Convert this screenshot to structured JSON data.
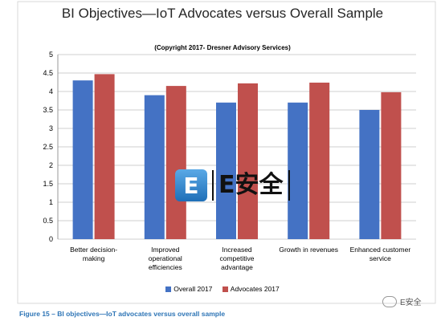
{
  "chart_data": {
    "type": "bar",
    "title": "BI Objectives—IoT Advocates versus Overall Sample",
    "subtitle": "(Copyright 2017- Dresner Advisory Services)",
    "categories": [
      [
        "Better decision-",
        "making"
      ],
      [
        "Improved",
        "operational",
        "efficiencies"
      ],
      [
        "Increased",
        "competitive",
        "advantage"
      ],
      [
        "Growth in revenues"
      ],
      [
        "Enhanced customer",
        "service"
      ]
    ],
    "series": [
      {
        "name": "Overall 2017",
        "color": "#4472c4",
        "values": [
          4.3,
          3.9,
          3.7,
          3.7,
          3.5
        ]
      },
      {
        "name": "Advocates 2017",
        "color": "#c0504d",
        "values": [
          4.47,
          4.15,
          4.22,
          4.24,
          3.98
        ]
      }
    ],
    "ylim": [
      0,
      5
    ],
    "yticks": [
      "0",
      "0.5",
      "1",
      "1.5",
      "2",
      "2.5",
      "3",
      "3.5",
      "4",
      "4.5",
      "5"
    ],
    "grid": true,
    "legend_position": "bottom"
  },
  "caption": "Figure 15 – BI objectives—IoT advocates versus overall sample",
  "watermark": {
    "logo_letter": "E",
    "text": "E安全"
  },
  "wechat_label": "E安全"
}
